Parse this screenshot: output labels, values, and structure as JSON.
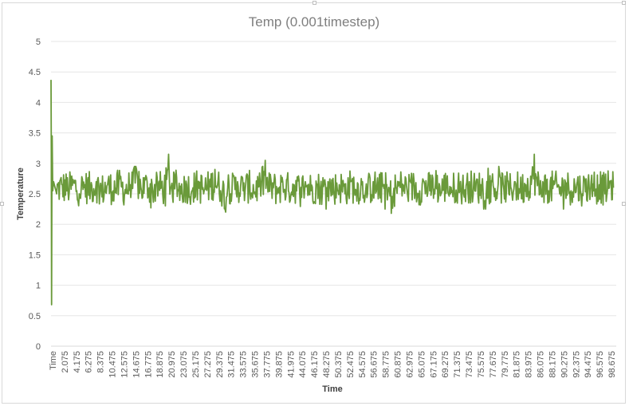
{
  "chart_data": {
    "type": "line",
    "title": "Temp (0.001timestep)",
    "xlabel": "Time",
    "ylabel": "Temperature",
    "ylim": [
      0,
      5
    ],
    "yticks": [
      "0",
      "0.5",
      "1",
      "1.5",
      "2",
      "2.5",
      "3",
      "3.5",
      "4",
      "4.5",
      "5"
    ],
    "xticks": [
      "Time",
      "2.075",
      "4.175",
      "6.275",
      "8.375",
      "10.475",
      "12.575",
      "14.675",
      "16.775",
      "18.875",
      "20.975",
      "23.075",
      "25.175",
      "27.275",
      "29.375",
      "31.475",
      "33.575",
      "35.675",
      "37.775",
      "39.875",
      "41.975",
      "44.075",
      "46.175",
      "48.275",
      "50.375",
      "52.475",
      "54.575",
      "56.675",
      "58.775",
      "60.875",
      "62.975",
      "65.075",
      "67.175",
      "69.275",
      "71.375",
      "73.475",
      "75.575",
      "77.675",
      "79.775",
      "81.875",
      "83.975",
      "86.075",
      "88.175",
      "90.275",
      "92.375",
      "94.475",
      "96.575",
      "98.675"
    ],
    "grid": true,
    "legend": "none",
    "series": [
      {
        "color": "#6a9a3a",
        "points": [
          [
            0.0,
            4.37
          ],
          [
            0.05,
            3.2
          ],
          [
            0.1,
            0.68
          ],
          [
            0.15,
            2.6
          ],
          [
            0.2,
            3.45
          ],
          [
            0.3,
            2.55
          ],
          [
            0.45,
            2.7
          ],
          [
            1.0,
            2.5
          ],
          [
            2.0,
            2.65
          ],
          [
            3.0,
            2.55
          ],
          [
            4.0,
            2.7
          ],
          [
            5.0,
            2.5
          ],
          [
            6.0,
            2.65
          ],
          [
            7.0,
            2.55
          ],
          [
            8.0,
            2.7
          ],
          [
            9.0,
            2.45
          ],
          [
            10.0,
            2.65
          ],
          [
            11.0,
            2.55
          ],
          [
            12.0,
            2.7
          ],
          [
            13.0,
            2.5
          ],
          [
            14.0,
            2.65
          ],
          [
            15.0,
            2.95
          ],
          [
            16.0,
            2.55
          ],
          [
            17.0,
            2.7
          ],
          [
            18.0,
            2.5
          ],
          [
            19.0,
            2.65
          ],
          [
            20.0,
            2.55
          ],
          [
            20.8,
            3.15
          ],
          [
            21.5,
            2.45
          ],
          [
            22.0,
            2.7
          ],
          [
            23.0,
            2.5
          ],
          [
            24.0,
            2.65
          ],
          [
            25.0,
            2.55
          ],
          [
            26.0,
            2.7
          ],
          [
            27.0,
            2.5
          ],
          [
            28.0,
            2.65
          ],
          [
            29.0,
            2.9
          ],
          [
            30.0,
            2.55
          ],
          [
            30.9,
            2.2
          ],
          [
            31.5,
            2.65
          ],
          [
            32.0,
            2.5
          ],
          [
            33.0,
            2.7
          ],
          [
            34.0,
            2.55
          ],
          [
            35.0,
            2.65
          ],
          [
            36.0,
            2.5
          ],
          [
            37.0,
            2.7
          ],
          [
            37.9,
            3.05
          ],
          [
            38.5,
            2.55
          ],
          [
            39.0,
            2.65
          ],
          [
            40.0,
            2.5
          ],
          [
            41.0,
            2.7
          ],
          [
            42.0,
            2.55
          ],
          [
            43.0,
            2.65
          ],
          [
            44.0,
            2.5
          ],
          [
            45.0,
            2.7
          ],
          [
            46.0,
            2.55
          ],
          [
            47.0,
            2.65
          ],
          [
            48.0,
            2.5
          ],
          [
            49.0,
            2.7
          ],
          [
            50.0,
            2.55
          ],
          [
            51.0,
            2.65
          ],
          [
            52.0,
            2.5
          ],
          [
            53.0,
            2.7
          ],
          [
            54.0,
            2.55
          ],
          [
            55.0,
            2.65
          ],
          [
            56.0,
            2.5
          ],
          [
            57.0,
            2.7
          ],
          [
            58.0,
            2.55
          ],
          [
            59.0,
            2.65
          ],
          [
            59.5,
            2.4
          ],
          [
            60.2,
            2.18
          ],
          [
            61.0,
            2.6
          ],
          [
            62.0,
            2.7
          ],
          [
            63.0,
            2.55
          ],
          [
            64.0,
            2.65
          ],
          [
            65.0,
            2.5
          ],
          [
            66.0,
            2.7
          ],
          [
            67.0,
            2.55
          ],
          [
            68.0,
            2.65
          ],
          [
            69.0,
            2.5
          ],
          [
            70.0,
            2.7
          ],
          [
            71.0,
            2.55
          ],
          [
            72.0,
            2.65
          ],
          [
            73.0,
            2.5
          ],
          [
            74.0,
            2.7
          ],
          [
            75.0,
            2.55
          ],
          [
            76.0,
            2.65
          ],
          [
            77.0,
            2.5
          ],
          [
            78.0,
            2.7
          ],
          [
            79.0,
            2.55
          ],
          [
            80.0,
            2.65
          ],
          [
            81.0,
            2.5
          ],
          [
            82.0,
            2.7
          ],
          [
            83.0,
            2.55
          ],
          [
            84.0,
            2.65
          ],
          [
            85.5,
            3.15
          ],
          [
            86.5,
            2.5
          ],
          [
            87.0,
            2.7
          ],
          [
            88.0,
            2.55
          ],
          [
            89.0,
            2.65
          ],
          [
            90.0,
            2.5
          ],
          [
            91.0,
            2.7
          ],
          [
            92.0,
            2.55
          ],
          [
            93.0,
            2.65
          ],
          [
            94.0,
            2.5
          ],
          [
            95.0,
            2.7
          ],
          [
            96.0,
            2.55
          ],
          [
            97.0,
            2.65
          ],
          [
            98.0,
            2.5
          ],
          [
            99.0,
            2.7
          ],
          [
            99.5,
            2.6
          ]
        ],
        "noise_band": [
          2.25,
          2.95
        ]
      }
    ]
  }
}
